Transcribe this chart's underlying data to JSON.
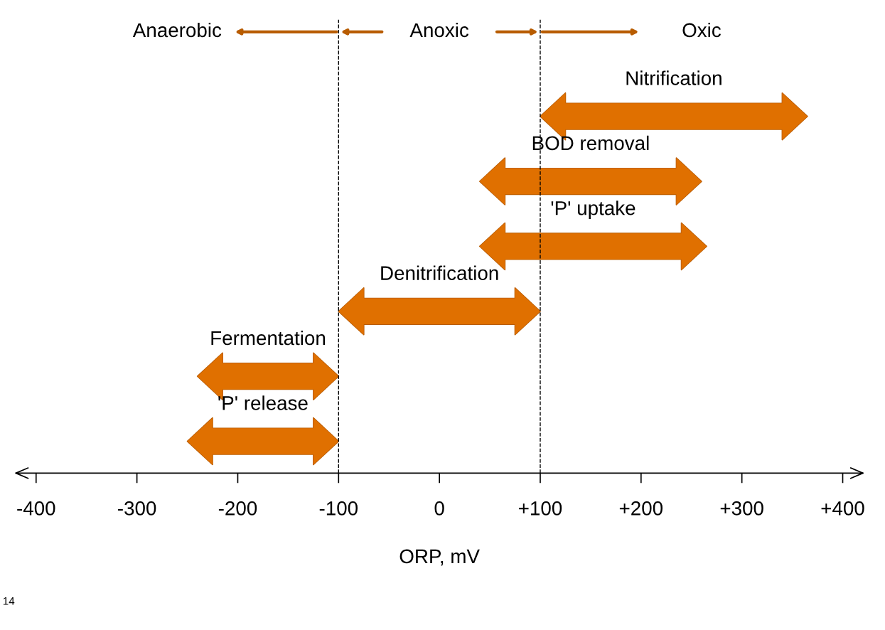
{
  "chart_data": {
    "type": "bar",
    "orientation": "horizontal",
    "xlabel": "ORP, mV",
    "categories": [
      "Nitrification",
      "BOD removal",
      "'P' uptake",
      "Denitrification",
      "Fermentation",
      "'P' release"
    ],
    "base": [
      100,
      40,
      40,
      -100,
      -240,
      -250
    ],
    "values": [
      265,
      220,
      225,
      200,
      140,
      150
    ],
    "color": "#e07000",
    "xlim": [
      -420,
      420
    ],
    "xticks": [
      -400,
      -300,
      -200,
      -100,
      0,
      {
        "value": 100,
        "label": "+100"
      },
      {
        "value": 200,
        "label": "+200"
      },
      {
        "value": 300,
        "label": "+300"
      },
      {
        "value": 400,
        "label": "+400"
      }
    ],
    "tick_labels": "x",
    "grid": false,
    "legend": false,
    "ref_lines": [
      {
        "axis": "x",
        "value": -100,
        "line_style": "dashed",
        "color": "#000000"
      },
      {
        "axis": "x",
        "value": 100,
        "line_style": "dashed",
        "color": "#000000"
      }
    ],
    "annotations": [
      "Anaerobic",
      "Anoxic",
      "Oxic",
      "14"
    ]
  }
}
